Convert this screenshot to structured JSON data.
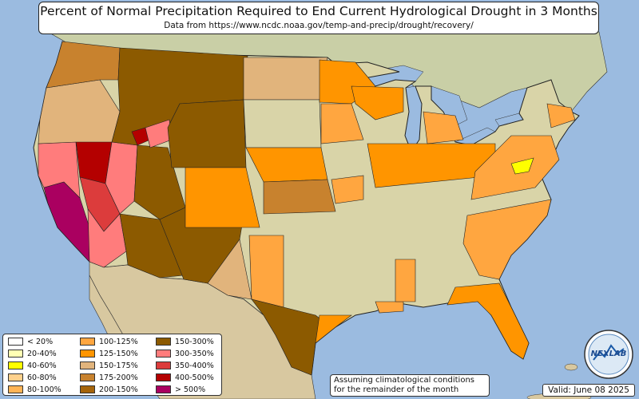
{
  "title": "Percent of Normal Precipitation Required to End Current Hydrological Drought in 3 Months",
  "subtitle": "Data from https://www.ncdc.noaa.gov/temp-and-precip/drought/recovery/",
  "note": "Assuming climatological conditions for the remainder of the month",
  "valid": "Valid: June 08 2025",
  "logo_text": "NEXLAB",
  "colors": {
    "ocean": "#9bbbe0",
    "land": "#d9d4a8",
    "canada": "#c9cfa6",
    "mexico": "#d8c8a0",
    "border": "#222222"
  },
  "legend": [
    {
      "label": "< 20%",
      "color": "#ffffff"
    },
    {
      "label": "20-40%",
      "color": "#ffffb4"
    },
    {
      "label": "40-60%",
      "color": "#ffff00"
    },
    {
      "label": "60-80%",
      "color": "#ffd18c"
    },
    {
      "label": "80-100%",
      "color": "#ffb456"
    },
    {
      "label": "100-125%",
      "color": "#ffa640"
    },
    {
      "label": "125-150%",
      "color": "#ff9500"
    },
    {
      "label": "150-175%",
      "color": "#e1b47c"
    },
    {
      "label": "175-200%",
      "color": "#c8822e"
    },
    {
      "label": "200-150%",
      "color": "#a5640a"
    },
    {
      "label": "150-300%",
      "color": "#8c5a00"
    },
    {
      "label": "300-350%",
      "color": "#ff7c7c"
    },
    {
      "label": "350-400%",
      "color": "#dc3c3c"
    },
    {
      "label": "400-500%",
      "color": "#b40000"
    },
    {
      "label": "> 500%",
      "color": "#aa0060"
    }
  ]
}
